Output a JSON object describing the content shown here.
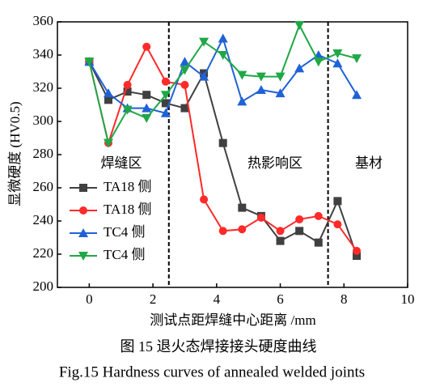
{
  "chart_data": {
    "type": "line",
    "x_label": "测试点距焊缝中心距离 /mm",
    "y_label": "显微硬度 (HV0.5)",
    "captions": [
      "图 15  退火态焊接接头硬度曲线",
      "Fig.15  Hardness curves of annealed welded joints"
    ],
    "annotations": [
      "焊缝区",
      "热影响区",
      "基材"
    ],
    "vlines": [
      2.5,
      7.5
    ],
    "x": [
      0,
      0.6,
      1.2,
      1.8,
      2.4,
      3.0,
      3.6,
      4.2,
      4.8,
      5.4,
      6.0,
      6.6,
      7.2,
      7.8,
      8.4
    ],
    "series": [
      {
        "name": "TA18 侧",
        "color": "#404040",
        "marker": "square",
        "values": [
          336,
          313,
          318,
          316,
          311,
          308,
          329,
          287,
          248,
          243,
          228,
          234,
          227,
          252,
          219
        ]
      },
      {
        "name": "TA18 侧",
        "color": "#ff2a2a",
        "marker": "circle",
        "values": [
          336,
          287,
          322,
          345,
          324,
          322,
          253,
          234,
          235,
          242,
          234,
          241,
          243,
          238,
          222
        ]
      },
      {
        "name": "TC4 侧",
        "color": "#1f62d6",
        "marker": "triangle-up",
        "values": [
          336,
          317,
          308,
          308,
          305,
          336,
          327,
          350,
          312,
          319,
          317,
          332,
          340,
          335,
          316
        ]
      },
      {
        "name": "TC4 侧",
        "color": "#1fa845",
        "marker": "triangle-down",
        "values": [
          336,
          287,
          307,
          302,
          316,
          331,
          348,
          340,
          328,
          327,
          327,
          358,
          336,
          341,
          338
        ]
      }
    ],
    "xlim": [
      -1,
      10
    ],
    "xticks": [
      0,
      2,
      4,
      6,
      8,
      10
    ],
    "ylim": [
      200,
      360
    ],
    "yticks": [
      200,
      220,
      240,
      260,
      280,
      300,
      320,
      340,
      360
    ]
  }
}
